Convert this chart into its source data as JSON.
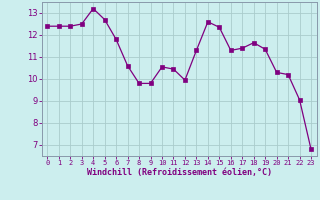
{
  "x": [
    0,
    1,
    2,
    3,
    4,
    5,
    6,
    7,
    8,
    9,
    10,
    11,
    12,
    13,
    14,
    15,
    16,
    17,
    18,
    19,
    20,
    21,
    22,
    23
  ],
  "y": [
    12.4,
    12.4,
    12.4,
    12.5,
    13.2,
    12.7,
    11.8,
    10.6,
    9.8,
    9.8,
    10.55,
    10.45,
    9.95,
    11.3,
    12.6,
    12.35,
    11.3,
    11.4,
    11.65,
    11.35,
    10.3,
    10.2,
    9.05,
    6.8
  ],
  "line_color": "#800080",
  "marker": "s",
  "marker_size": 2.5,
  "bg_color": "#cceeee",
  "grid_color": "#aacccc",
  "xlabel": "Windchill (Refroidissement éolien,°C)",
  "xlabel_color": "#800080",
  "tick_color": "#800080",
  "spine_color": "#8899aa",
  "ylim": [
    6.5,
    13.5
  ],
  "xlim": [
    -0.5,
    23.5
  ],
  "yticks": [
    7,
    8,
    9,
    10,
    11,
    12,
    13
  ],
  "xticks": [
    0,
    1,
    2,
    3,
    4,
    5,
    6,
    7,
    8,
    9,
    10,
    11,
    12,
    13,
    14,
    15,
    16,
    17,
    18,
    19,
    20,
    21,
    22,
    23
  ]
}
